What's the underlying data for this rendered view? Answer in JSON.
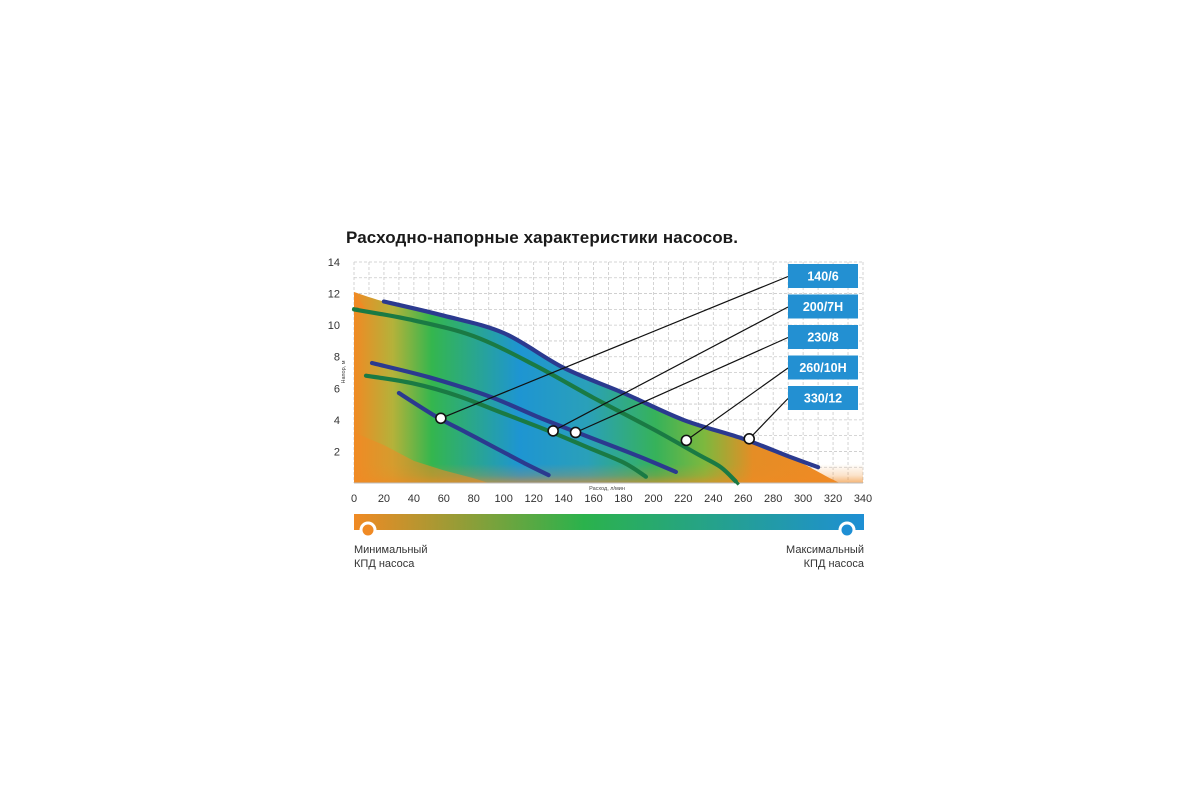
{
  "chart_data": {
    "type": "line",
    "title": "Расходно-напорные характеристики насосов.",
    "xlabel": "Расход, л/мин",
    "ylabel": "Напор, м",
    "xlim": [
      0,
      340
    ],
    "ylim": [
      0,
      14
    ],
    "xticks": [
      "0",
      "20",
      "40",
      "60",
      "80",
      "100",
      "120",
      "140",
      "160",
      "180",
      "200",
      "220",
      "240",
      "260",
      "280",
      "300",
      "320",
      "340"
    ],
    "yticks": [
      "2",
      "4",
      "6",
      "8",
      "10",
      "12",
      "14"
    ],
    "grid": true,
    "series": [
      {
        "name": "140/6",
        "color": "#2b3a8f",
        "x": [
          30,
          55,
          75,
          95,
          115,
          130
        ],
        "y": [
          5.7,
          4.2,
          3.2,
          2.2,
          1.2,
          0.5
        ],
        "marker": {
          "x": 58,
          "y": 4.1
        }
      },
      {
        "name": "200/7H",
        "color": "#1a7a44",
        "x": [
          8,
          40,
          70,
          100,
          130,
          155,
          180,
          195
        ],
        "y": [
          6.8,
          6.3,
          5.5,
          4.4,
          3.3,
          2.3,
          1.3,
          0.4
        ],
        "marker": {
          "x": 133,
          "y": 3.3
        }
      },
      {
        "name": "230/8",
        "color": "#2b3a8f",
        "x": [
          12,
          50,
          90,
          125,
          160,
          190,
          215
        ],
        "y": [
          7.6,
          6.7,
          5.5,
          4.1,
          2.8,
          1.7,
          0.7
        ],
        "marker": {
          "x": 148,
          "y": 3.2
        }
      },
      {
        "name": "260/10H",
        "color": "#1a7a44",
        "x": [
          0,
          40,
          80,
          120,
          160,
          200,
          230,
          245,
          255
        ],
        "y": [
          11.0,
          10.3,
          9.3,
          7.5,
          5.4,
          3.4,
          1.8,
          1.0,
          0.1
        ],
        "marker": {
          "x": 222,
          "y": 2.7
        }
      },
      {
        "name": "330/12",
        "color": "#2b3a8f",
        "x": [
          20,
          60,
          100,
          140,
          180,
          220,
          260,
          290,
          310
        ],
        "y": [
          11.5,
          10.6,
          9.5,
          7.3,
          5.7,
          4.0,
          2.8,
          1.7,
          1.0
        ],
        "marker": {
          "x": 264,
          "y": 2.8
        }
      }
    ]
  },
  "legend": {
    "min_line1": "Минимальный",
    "min_line2": "КПД насоса",
    "max_line1": "Максимальный",
    "max_line2": "КПД насоса",
    "min_color": "#f08a24",
    "mid_color": "#2bb24c",
    "max_color": "#1e8fd4"
  },
  "colors": {
    "label_box": "#2390d2",
    "grid": "#c9c9c9",
    "low_efficiency": "#f08a24",
    "high_efficiency": "#1e8fd4"
  }
}
